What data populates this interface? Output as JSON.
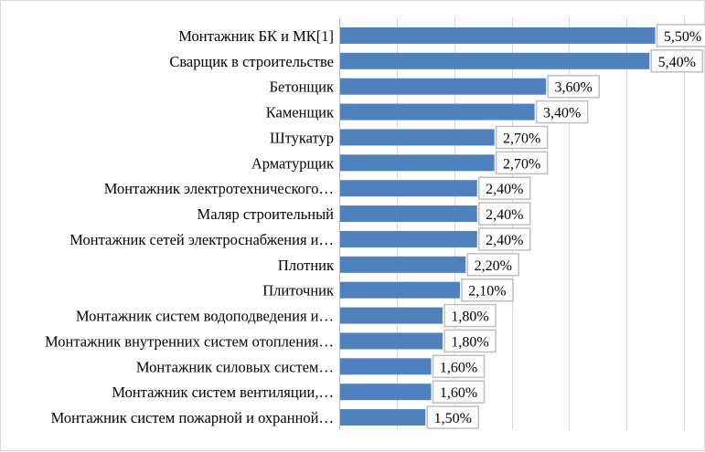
{
  "chart_data": {
    "type": "bar",
    "orientation": "horizontal",
    "categories": [
      "Монтажник БК и МК[1]",
      "Сварщик в строительстве",
      "Бетонщик",
      "Каменщик",
      "Штукатур ",
      "Арматурщик",
      "Монтажник электротехнического…",
      "Маляр строительный",
      "Монтажник сетей электроснабжения и…",
      "Плотник",
      "Плиточник",
      "Монтажник систем водоподведения и…",
      "Монтажник внутренних систем отопления…",
      "Монтажник силовых систем…",
      "Монтажник систем вентиляции,…",
      "Монтажник систем пожарной и охранной…"
    ],
    "values": [
      5.5,
      5.4,
      3.6,
      3.4,
      2.7,
      2.7,
      2.4,
      2.4,
      2.4,
      2.2,
      2.1,
      1.8,
      1.8,
      1.6,
      1.6,
      1.5
    ],
    "data_labels": [
      "5,50%",
      "5,40%",
      "3,60%",
      "3,40%",
      "2,70%",
      "2,70%",
      "2,40%",
      "2,40%",
      "2,40%",
      "2,20%",
      "2,10%",
      "1,80%",
      "1,80%",
      "1,60%",
      "1,60%",
      "1,50%"
    ],
    "xlim": [
      0,
      6
    ],
    "grid": true,
    "legend": "none",
    "title": "",
    "xlabel": "",
    "ylabel": "",
    "bar_color": "#4f81bd"
  }
}
